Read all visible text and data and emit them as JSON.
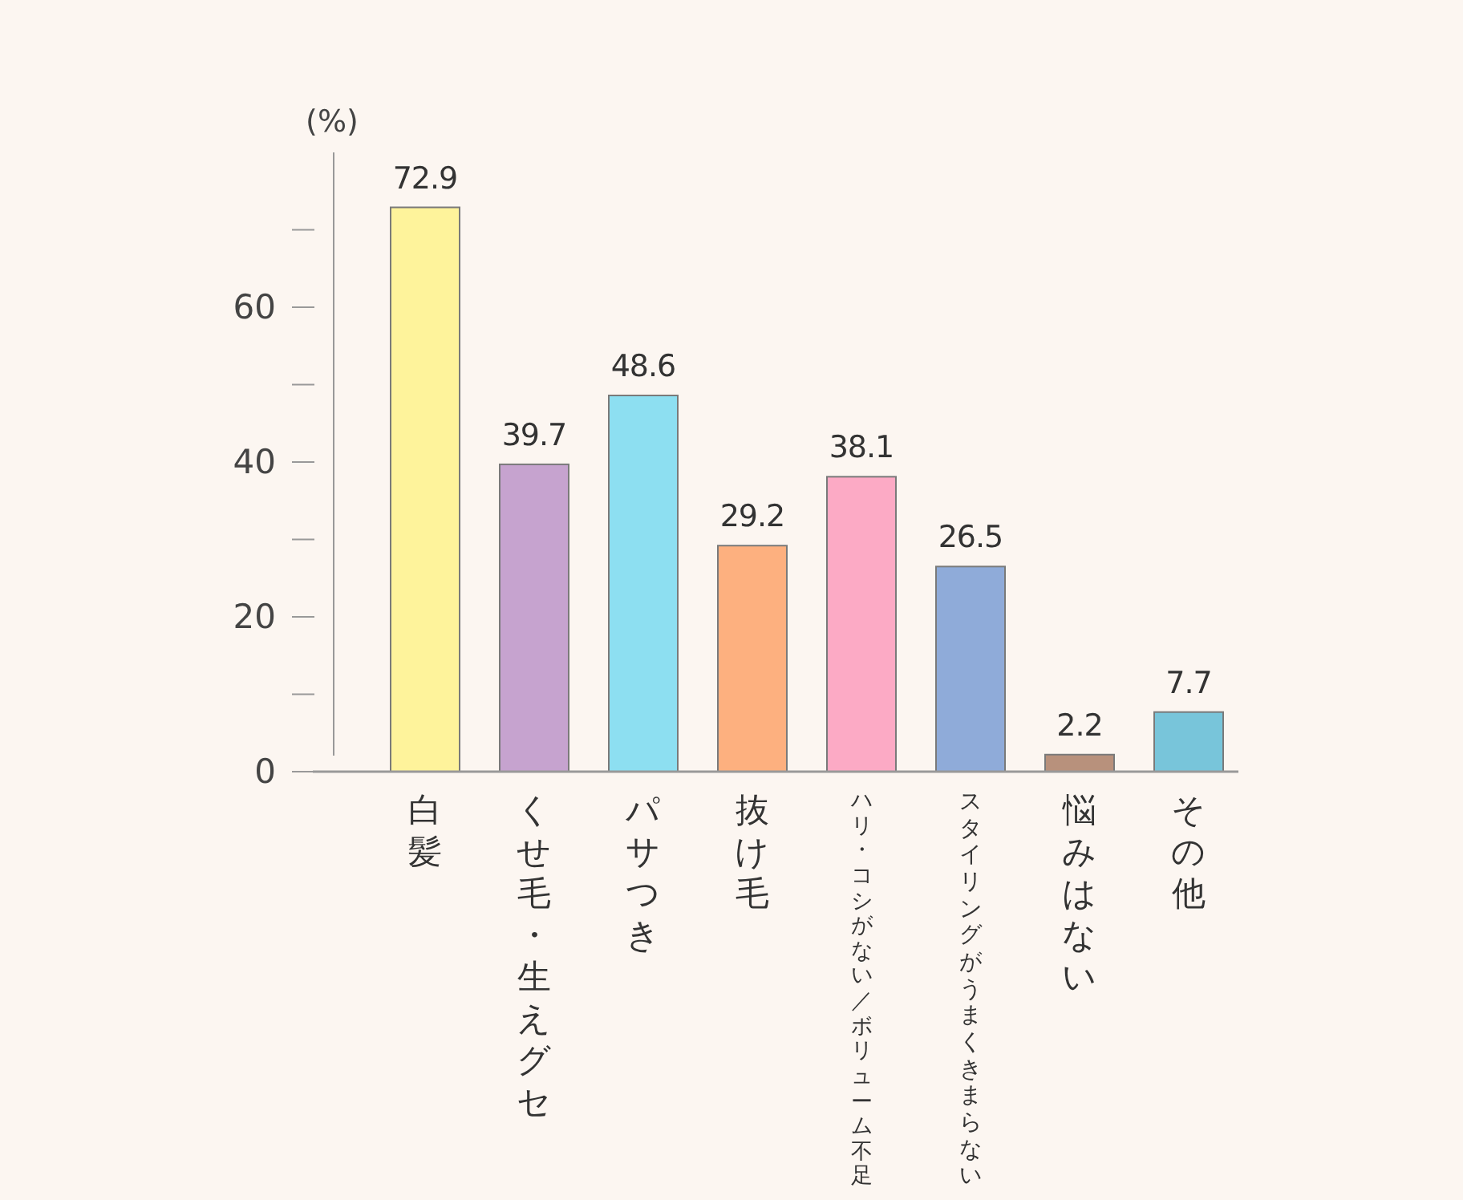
{
  "chart_data": {
    "type": "bar",
    "ylabel": "(%)",
    "categories": [
      "白髪",
      "くせ毛・生えグセ",
      "パサつき",
      "抜け毛",
      "ハリ・コシがない／ボリューム不足",
      "スタイリングがうまくきまらない",
      "悩みはない",
      "その他"
    ],
    "values": [
      72.9,
      39.7,
      48.6,
      29.2,
      38.1,
      26.5,
      2.2,
      7.7
    ],
    "colors": [
      "#fef39b",
      "#c6a3cf",
      "#8ddff1",
      "#fdb07f",
      "#fcaac5",
      "#8fabd9",
      "#b8917c",
      "#78c5da"
    ],
    "ylim": [
      0,
      80
    ],
    "yticks": [
      0,
      {
        "value": 10,
        "label": null
      },
      20,
      {
        "value": 30,
        "label": null
      },
      40,
      {
        "value": 50,
        "label": null
      },
      60,
      {
        "value": 70,
        "label": null
      }
    ],
    "data_labels": true
  }
}
